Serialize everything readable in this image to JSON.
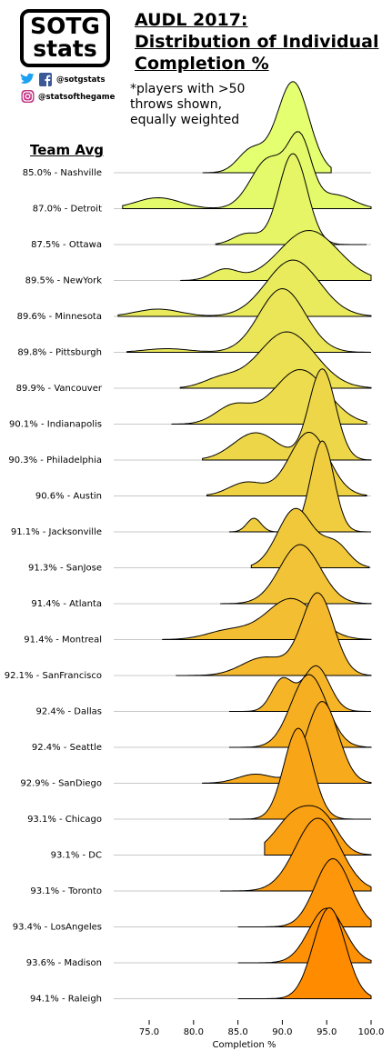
{
  "logo": {
    "line1": "SOTG",
    "line2": "stats"
  },
  "social": {
    "twitter_handle": "@sotgstats",
    "instagram_handle": "@statsofthegame",
    "icons": [
      "twitter-icon",
      "facebook-icon",
      "instagram-icon"
    ]
  },
  "title_lines": [
    "AUDL 2017:",
    "Distribution of Individual",
    "Completion %"
  ],
  "note_lines": [
    "*players with >50",
    " throws shown,",
    " equally weighted"
  ],
  "team_avg_heading": "Team Avg",
  "chart_data": {
    "type": "ridgeline",
    "title": "AUDL 2017: Distribution of Individual Completion %",
    "xlabel": "Completion %",
    "xlim": [
      71,
      100
    ],
    "xticks": [
      "75.0",
      "80.0",
      "85.0",
      "90.0",
      "95.0",
      "100.0"
    ],
    "xtick_values": [
      75,
      80,
      85,
      90,
      95,
      100
    ],
    "colors": {
      "top": "#e4ff70",
      "bottom": "#ff8c00",
      "baseline": "#c8c8c8"
    },
    "teams": [
      {
        "label": "85.0% - Nashville",
        "avg": 85.0,
        "min": 81.0,
        "max": 95.5,
        "peaks": [
          [
            91.2,
            1.8,
            1.0
          ],
          [
            86.5,
            1.5,
            0.25
          ]
        ]
      },
      {
        "label": "87.0% - Detroit",
        "avg": 87.0,
        "min": 72.0,
        "max": 100.0,
        "peaks": [
          [
            88.5,
            2.0,
            0.55
          ],
          [
            92.0,
            1.3,
            0.7
          ],
          [
            76.0,
            2.5,
            0.12
          ],
          [
            96.0,
            2.0,
            0.15
          ]
        ]
      },
      {
        "label": "87.5% - Ottawa",
        "avg": 87.5,
        "min": 82.5,
        "max": 99.5,
        "peaks": [
          [
            91.2,
            1.6,
            1.0
          ],
          [
            86.0,
            1.5,
            0.12
          ]
        ]
      },
      {
        "label": "89.5% - NewYork",
        "avg": 89.5,
        "min": 78.5,
        "max": 100.0,
        "peaks": [
          [
            93.0,
            3.3,
            0.55
          ],
          [
            83.5,
            1.5,
            0.12
          ]
        ]
      },
      {
        "label": "89.6% - Minnesota",
        "avg": 89.6,
        "min": 71.5,
        "max": 100.0,
        "peaks": [
          [
            91.2,
            3.0,
            0.62
          ],
          [
            76.0,
            2.5,
            0.08
          ]
        ]
      },
      {
        "label": "89.8% - Pittsburgh",
        "avg": 89.8,
        "min": 72.5,
        "max": 100.0,
        "peaks": [
          [
            90.0,
            2.6,
            0.7
          ],
          [
            77.0,
            2.5,
            0.04
          ]
        ]
      },
      {
        "label": "89.9% - Vancouver",
        "avg": 89.9,
        "min": 78.5,
        "max": 100.0,
        "peaks": [
          [
            90.5,
            3.2,
            0.62
          ],
          [
            83.0,
            2.0,
            0.1
          ]
        ]
      },
      {
        "label": "90.1% - Indianapolis",
        "avg": 90.1,
        "min": 77.5,
        "max": 99.5,
        "peaks": [
          [
            92.0,
            3.0,
            0.6
          ],
          [
            84.5,
            2.0,
            0.2
          ]
        ]
      },
      {
        "label": "90.3% - Philadelphia",
        "avg": 90.3,
        "min": 81.0,
        "max": 100.0,
        "peaks": [
          [
            94.5,
            1.5,
            1.0
          ],
          [
            87.0,
            2.5,
            0.3
          ]
        ]
      },
      {
        "label": "90.6% - Austin",
        "avg": 90.6,
        "min": 81.5,
        "max": 99.5,
        "peaks": [
          [
            93.0,
            2.2,
            0.7
          ],
          [
            86.0,
            2.0,
            0.15
          ]
        ]
      },
      {
        "label": "91.1% - Jacksonville",
        "avg": 91.1,
        "min": 84.0,
        "max": 100.0,
        "peaks": [
          [
            94.5,
            1.3,
            1.0
          ],
          [
            86.8,
            0.8,
            0.15
          ]
        ]
      },
      {
        "label": "91.3% - SanJose",
        "avg": 91.3,
        "min": 86.5,
        "max": 99.8,
        "peaks": [
          [
            91.5,
            2.0,
            0.65
          ],
          [
            96.0,
            1.5,
            0.25
          ]
        ]
      },
      {
        "label": "91.4% - Atlanta",
        "avg": 91.4,
        "min": 83.0,
        "max": 100.0,
        "peaks": [
          [
            92.0,
            2.3,
            0.65
          ]
        ]
      },
      {
        "label": "91.4% - Montreal",
        "avg": 91.4,
        "min": 76.5,
        "max": 100.0,
        "peaks": [
          [
            91.0,
            2.8,
            0.45
          ],
          [
            84.0,
            2.5,
            0.1
          ]
        ]
      },
      {
        "label": "92.1% - SanFrancisco",
        "avg": 92.1,
        "min": 78.0,
        "max": 100.0,
        "peaks": [
          [
            94.0,
            1.8,
            0.9
          ],
          [
            88.0,
            2.5,
            0.2
          ]
        ]
      },
      {
        "label": "92.4% - Dallas",
        "avg": 92.4,
        "min": 84.0,
        "max": 100.0,
        "peaks": [
          [
            90.0,
            1.2,
            0.35
          ],
          [
            93.8,
            1.5,
            0.5
          ]
        ]
      },
      {
        "label": "92.4% - Seattle",
        "avg": 92.4,
        "min": 84.0,
        "max": 100.0,
        "peaks": [
          [
            93.0,
            2.0,
            0.8
          ]
        ]
      },
      {
        "label": "92.9% - SanDiego",
        "avg": 92.9,
        "min": 81.0,
        "max": 100.0,
        "peaks": [
          [
            94.5,
            1.8,
            0.9
          ],
          [
            87.0,
            2.0,
            0.1
          ]
        ]
      },
      {
        "label": "93.1% - Chicago",
        "avg": 93.1,
        "min": 84.0,
        "max": 100.0,
        "peaks": [
          [
            91.8,
            1.6,
            1.0
          ]
        ]
      },
      {
        "label": "93.1% - DC",
        "avg": 93.1,
        "min": 88.0,
        "max": 100.0,
        "peaks": [
          [
            92.0,
            2.5,
            0.5
          ],
          [
            95.0,
            1.5,
            0.2
          ]
        ]
      },
      {
        "label": "93.1% - Toronto",
        "avg": 93.1,
        "min": 83.0,
        "max": 100.0,
        "peaks": [
          [
            94.0,
            2.5,
            0.8
          ]
        ]
      },
      {
        "label": "93.4% - LosAngeles",
        "avg": 93.4,
        "min": 85.0,
        "max": 100.0,
        "peaks": [
          [
            95.7,
            2.0,
            0.75
          ]
        ]
      },
      {
        "label": "93.6% - Madison",
        "avg": 93.6,
        "min": 85.0,
        "max": 100.0,
        "peaks": [
          [
            95.0,
            2.0,
            0.6
          ]
        ]
      },
      {
        "label": "94.1% - Raleigh",
        "avg": 94.1,
        "min": 85.0,
        "max": 100.0,
        "peaks": [
          [
            95.3,
            1.8,
            1.0
          ]
        ]
      }
    ]
  }
}
